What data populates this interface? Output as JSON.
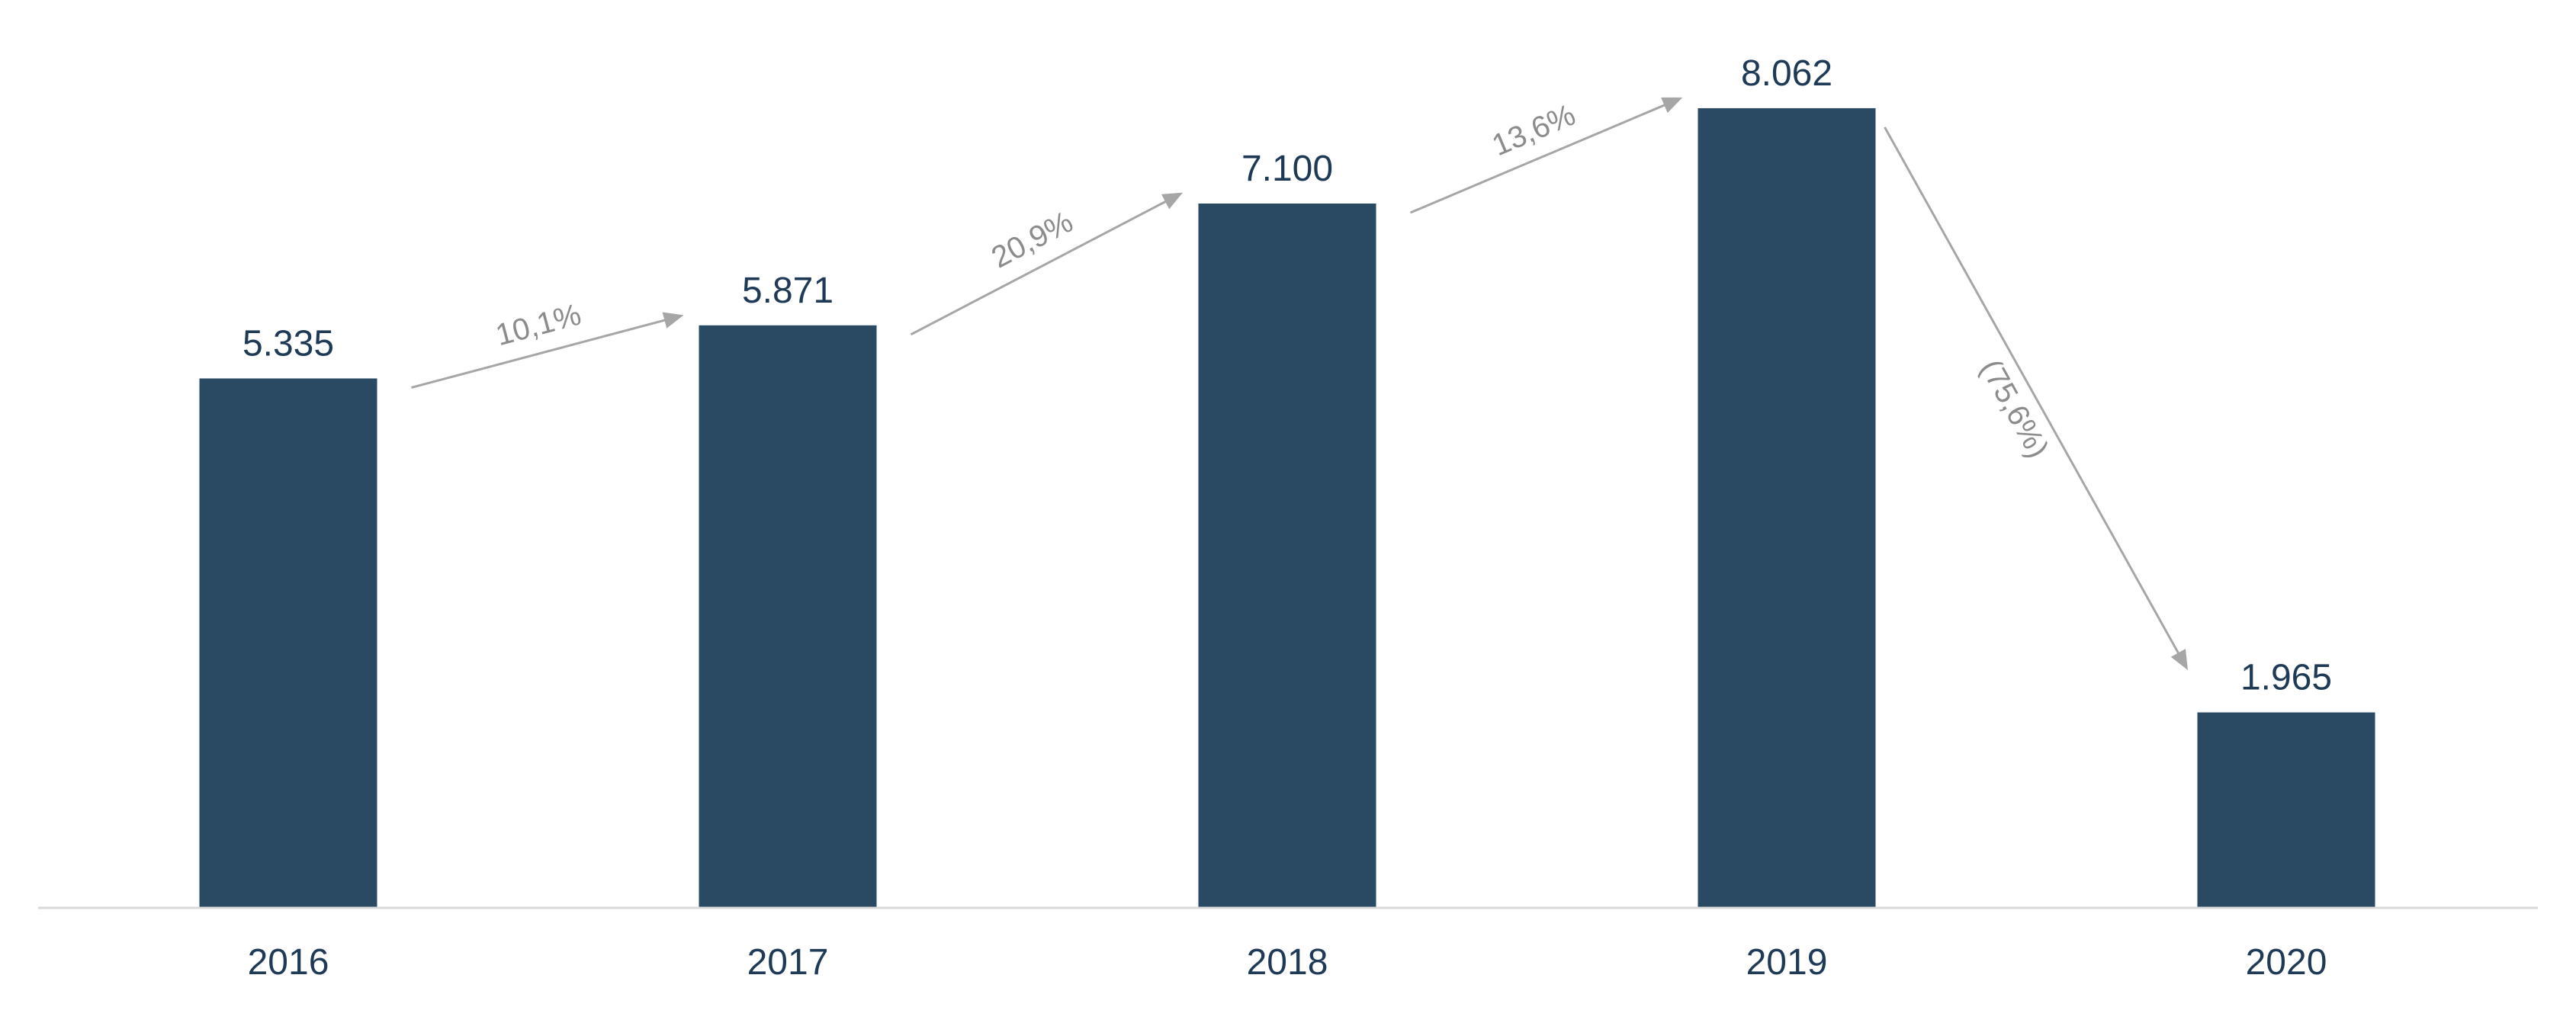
{
  "chart_data": {
    "type": "bar",
    "categories": [
      "2016",
      "2017",
      "2018",
      "2019",
      "2020"
    ],
    "values": [
      5335,
      5871,
      7100,
      8062,
      1965
    ],
    "value_labels": [
      "5.335",
      "5.871",
      "7.100",
      "8.062",
      "1.965"
    ],
    "growth": [
      {
        "from": "2016",
        "to": "2017",
        "label": "10,1%"
      },
      {
        "from": "2017",
        "to": "2018",
        "label": "20,9%"
      },
      {
        "from": "2018",
        "to": "2019",
        "label": "13,6%"
      },
      {
        "from": "2019",
        "to": "2020",
        "label": "(75,6%)"
      }
    ],
    "title": "",
    "xlabel": "",
    "ylabel": "",
    "ylim": [
      0,
      9000
    ],
    "grid": false,
    "legend": "none"
  },
  "colors": {
    "bar": "#2a4a63",
    "text": "#1f3a56",
    "arrow": "#a6a6a6",
    "axis": "#d9d9d9"
  }
}
